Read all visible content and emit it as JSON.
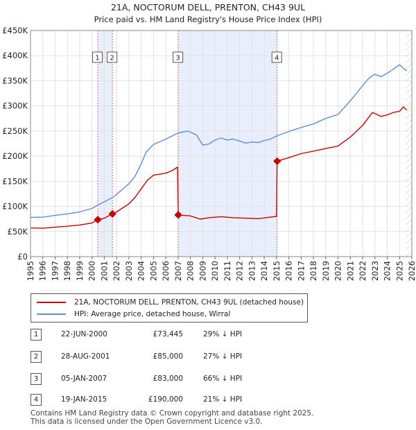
{
  "chart_data": {
    "type": "line",
    "title": "21A, NOCTORUM DELL, PRENTON, CH43 9UL",
    "subtitle": "Price paid vs. HM Land Registry's House Price Index (HPI)",
    "xlim": [
      1995,
      2026
    ],
    "ylim": [
      0,
      450000
    ],
    "y_ticks": [
      {
        "value": 0,
        "label": "£0"
      },
      {
        "value": 50000,
        "label": "£50K"
      },
      {
        "value": 100000,
        "label": "£100K"
      },
      {
        "value": 150000,
        "label": "£150K"
      },
      {
        "value": 200000,
        "label": "£200K"
      },
      {
        "value": 250000,
        "label": "£250K"
      },
      {
        "value": 300000,
        "label": "£300K"
      },
      {
        "value": 350000,
        "label": "£350K"
      },
      {
        "value": 400000,
        "label": "£400K"
      },
      {
        "value": 450000,
        "label": "£450K"
      }
    ],
    "x_ticks": [
      "1995",
      "1996",
      "1997",
      "1998",
      "1999",
      "2000",
      "2001",
      "2002",
      "2003",
      "2004",
      "2005",
      "2006",
      "2007",
      "2008",
      "2009",
      "2010",
      "2011",
      "2012",
      "2013",
      "2014",
      "2015",
      "2016",
      "2017",
      "2018",
      "2019",
      "2020",
      "2021",
      "2022",
      "2023",
      "2024",
      "2025",
      "2026"
    ],
    "shaded_spans": [
      [
        2000.47,
        2001.66
      ],
      [
        2007.01,
        2015.05
      ]
    ],
    "forecast_start": 2025.5,
    "series": [
      {
        "name": "21A, NOCTORUM DELL, PRENTON, CH43 9UL (detached house)",
        "color": "#cc0000",
        "points": [
          [
            1995.0,
            57000
          ],
          [
            1996.0,
            56500
          ],
          [
            1997.0,
            58500
          ],
          [
            1998.0,
            60500
          ],
          [
            1999.0,
            63000
          ],
          [
            2000.0,
            67000
          ],
          [
            2000.47,
            73445
          ],
          [
            2001.0,
            76500
          ],
          [
            2001.66,
            85000
          ],
          [
            2002.0,
            89000
          ],
          [
            2003.0,
            105000
          ],
          [
            2003.5,
            118000
          ],
          [
            2004.0,
            135000
          ],
          [
            2004.5,
            152000
          ],
          [
            2005.0,
            162000
          ],
          [
            2005.5,
            164000
          ],
          [
            2006.0,
            166000
          ],
          [
            2006.5,
            171000
          ],
          [
            2006.95,
            178000
          ],
          [
            2007.01,
            83000
          ],
          [
            2008.0,
            81000
          ],
          [
            2008.8,
            74500
          ],
          [
            2009.5,
            77500
          ],
          [
            2010.5,
            79500
          ],
          [
            2011.5,
            77500
          ],
          [
            2012.5,
            76500
          ],
          [
            2013.5,
            75500
          ],
          [
            2014.5,
            78500
          ],
          [
            2015.0,
            80000
          ],
          [
            2015.05,
            190000
          ],
          [
            2016.0,
            197000
          ],
          [
            2017.0,
            205000
          ],
          [
            2018.0,
            210000
          ],
          [
            2019.0,
            215000
          ],
          [
            2020.0,
            220000
          ],
          [
            2021.0,
            238000
          ],
          [
            2022.0,
            261000
          ],
          [
            2022.8,
            287000
          ],
          [
            2023.5,
            279000
          ],
          [
            2024.0,
            282000
          ],
          [
            2024.5,
            287000
          ],
          [
            2025.0,
            289000
          ],
          [
            2025.3,
            298000
          ],
          [
            2025.6,
            292000
          ]
        ]
      },
      {
        "name": "HPI: Average price, detached house, Wirral",
        "color": "#5b8fd6",
        "points": [
          [
            1995.0,
            78000
          ],
          [
            1996.0,
            78500
          ],
          [
            1997.0,
            82000
          ],
          [
            1998.0,
            85000
          ],
          [
            1999.0,
            89000
          ],
          [
            2000.0,
            96000
          ],
          [
            2000.5,
            103000
          ],
          [
            2001.0,
            109000
          ],
          [
            2001.7,
            118000
          ],
          [
            2002.0,
            124000
          ],
          [
            2003.0,
            145000
          ],
          [
            2003.5,
            160000
          ],
          [
            2004.0,
            185000
          ],
          [
            2004.4,
            208000
          ],
          [
            2005.0,
            223000
          ],
          [
            2006.0,
            234000
          ],
          [
            2006.5,
            240000
          ],
          [
            2007.0,
            246000
          ],
          [
            2007.8,
            250000
          ],
          [
            2008.5,
            242000
          ],
          [
            2009.0,
            222000
          ],
          [
            2009.5,
            224000
          ],
          [
            2010.0,
            232000
          ],
          [
            2010.5,
            236000
          ],
          [
            2011.0,
            232000
          ],
          [
            2011.5,
            234000
          ],
          [
            2012.0,
            230000
          ],
          [
            2012.5,
            226000
          ],
          [
            2013.0,
            228000
          ],
          [
            2013.5,
            227000
          ],
          [
            2014.0,
            231000
          ],
          [
            2014.5,
            234000
          ],
          [
            2015.0,
            240000
          ],
          [
            2016.0,
            249000
          ],
          [
            2017.0,
            257000
          ],
          [
            2018.0,
            264000
          ],
          [
            2019.0,
            275000
          ],
          [
            2020.0,
            283000
          ],
          [
            2021.0,
            310000
          ],
          [
            2022.0,
            340000
          ],
          [
            2022.5,
            355000
          ],
          [
            2023.0,
            363000
          ],
          [
            2023.5,
            358000
          ],
          [
            2024.0,
            365000
          ],
          [
            2024.5,
            373000
          ],
          [
            2025.0,
            382000
          ],
          [
            2025.3,
            375000
          ],
          [
            2025.6,
            370000
          ]
        ]
      }
    ],
    "transactions": [
      {
        "num": "1",
        "year": 2000.47,
        "price": 73445
      },
      {
        "num": "2",
        "year": 2001.66,
        "price": 85000
      },
      {
        "num": "3",
        "year": 2007.01,
        "price": 83000
      },
      {
        "num": "4",
        "year": 2015.05,
        "price": 190000
      }
    ]
  },
  "legend": {
    "sale_label": "21A, NOCTORUM DELL, PRENTON, CH43 9UL (detached house)",
    "hpi_label": "HPI: Average price, detached house, Wirral",
    "sale_color": "#cc0000",
    "hpi_color": "#5b8fd6"
  },
  "sales": [
    {
      "num": "1",
      "date": "22-JUN-2000",
      "price": "£73,445",
      "hpi": "29% ↓ HPI"
    },
    {
      "num": "2",
      "date": "28-AUG-2001",
      "price": "£85,000",
      "hpi": "27% ↓ HPI"
    },
    {
      "num": "3",
      "date": "05-JAN-2007",
      "price": "£83,000",
      "hpi": "66% ↓ HPI"
    },
    {
      "num": "4",
      "date": "19-JAN-2015",
      "price": "£190,000",
      "hpi": "21% ↓ HPI"
    }
  ],
  "footer": {
    "line1": "Contains HM Land Registry data © Crown copyright and database right 2025.",
    "line2": "This data is licensed under the Open Government Licence v3.0."
  }
}
